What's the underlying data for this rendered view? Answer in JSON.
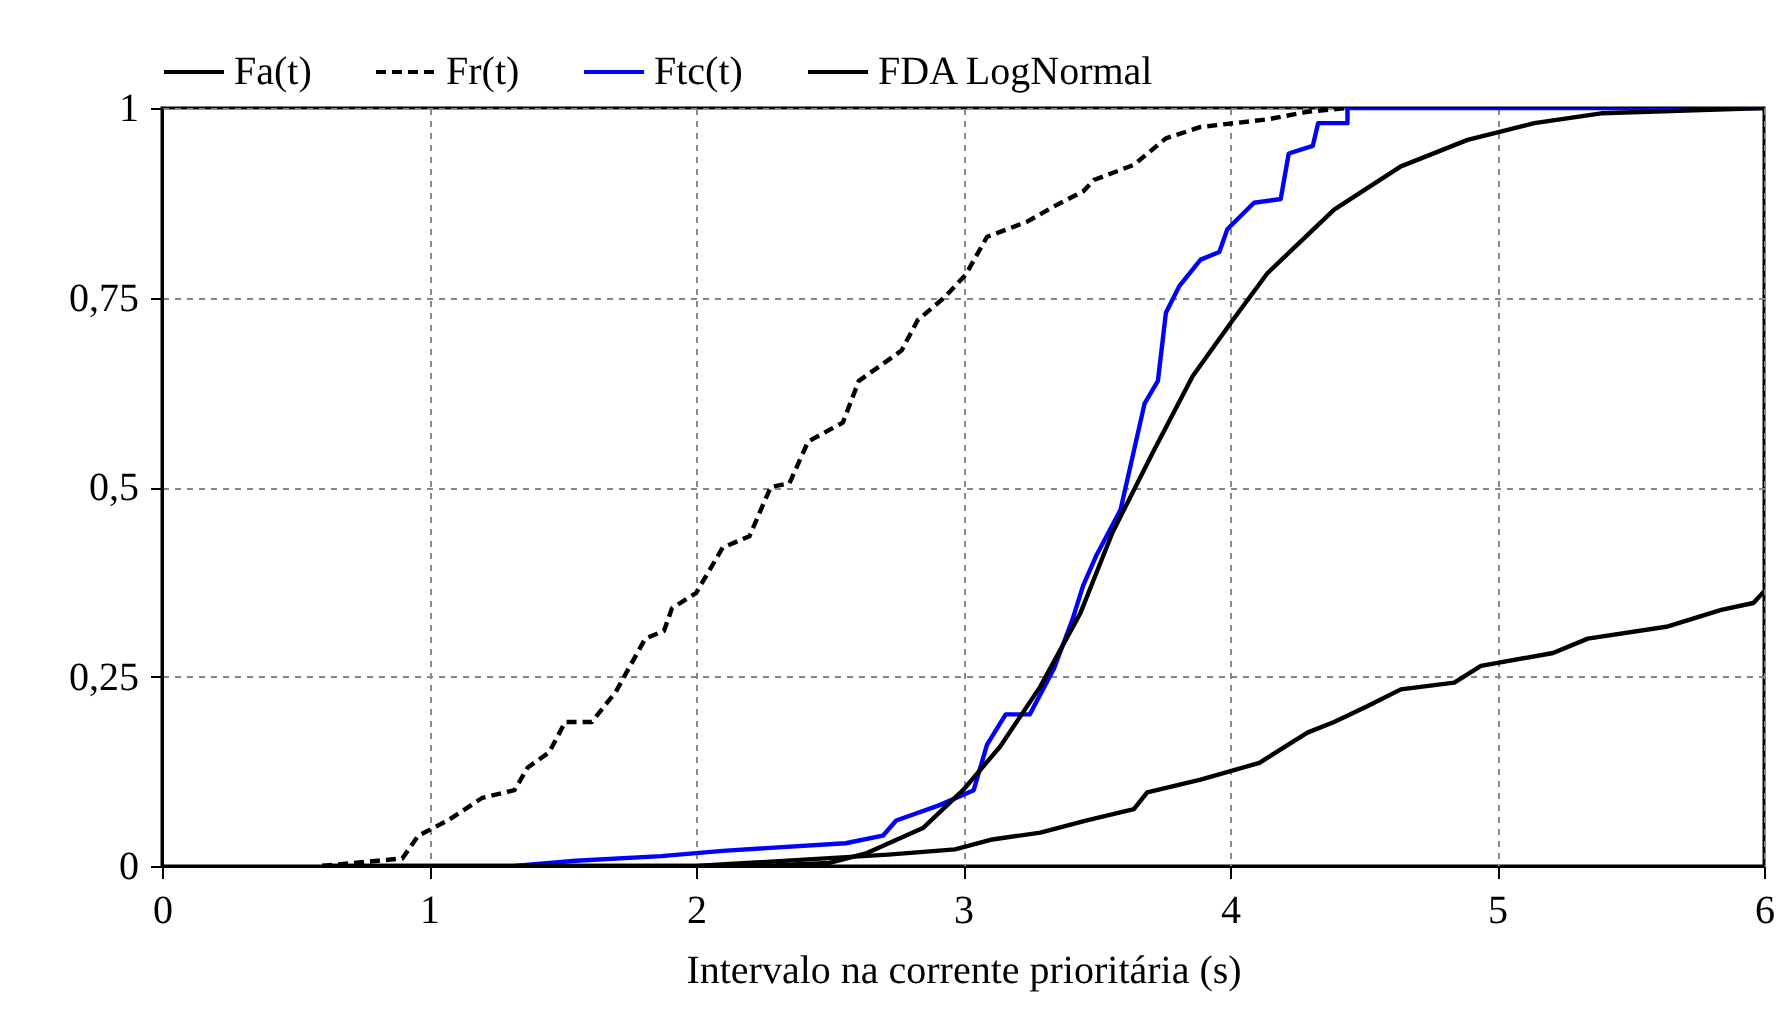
{
  "chart_data": {
    "type": "line",
    "xlabel": "Intervalo na corrente prioritária (s)",
    "xlim": [
      0,
      6
    ],
    "ylim": [
      0,
      1
    ],
    "xticks": [
      0,
      1,
      2,
      3,
      4,
      5,
      6
    ],
    "yticks": [
      0,
      {
        "value": 0.25,
        "label": "0,25"
      },
      {
        "value": 0.5,
        "label": "0,5"
      },
      {
        "value": 0.75,
        "label": "0,75"
      },
      1
    ],
    "grid": true,
    "legend": "top",
    "line_style": "solid",
    "series": [
      {
        "name": "Fa(t)",
        "color": "#000000",
        "x": [
          0.6,
          2.0,
          2.72,
          2.97,
          3.11,
          3.29,
          3.46,
          3.64,
          3.69,
          3.89,
          4.11,
          4.29,
          4.39,
          4.51,
          4.64,
          4.84,
          4.94,
          5.21,
          5.34,
          5.64,
          5.84,
          5.96,
          6.0
        ],
        "values": [
          0,
          0,
          0.015,
          0.022,
          0.035,
          0.044,
          0.06,
          0.075,
          0.097,
          0.114,
          0.136,
          0.176,
          0.19,
          0.21,
          0.233,
          0.242,
          0.264,
          0.281,
          0.3,
          0.316,
          0.338,
          0.347,
          0.362
        ]
      },
      {
        "name": "Fr(t)",
        "color": "#000000",
        "line_style": "dashed",
        "x": [
          0.6,
          0.9,
          0.96,
          1.07,
          1.2,
          1.32,
          1.37,
          1.45,
          1.51,
          1.61,
          1.7,
          1.81,
          1.88,
          1.91,
          2.0,
          2.1,
          2.2,
          2.28,
          2.35,
          2.42,
          2.55,
          2.61,
          2.77,
          2.83,
          2.93,
          3.01,
          3.09,
          3.24,
          3.34,
          3.45,
          3.49,
          3.64,
          3.76,
          3.89,
          4.14,
          4.29,
          4.44
        ],
        "values": [
          0,
          0.01,
          0.04,
          0.06,
          0.09,
          0.1,
          0.13,
          0.15,
          0.19,
          0.19,
          0.23,
          0.3,
          0.31,
          0.34,
          0.36,
          0.42,
          0.435,
          0.5,
          0.505,
          0.56,
          0.585,
          0.64,
          0.68,
          0.72,
          0.75,
          0.78,
          0.83,
          0.85,
          0.87,
          0.89,
          0.905,
          0.925,
          0.96,
          0.975,
          0.985,
          0.995,
          1
        ]
      },
      {
        "name": "Ftc(t)",
        "color": "#0000ff",
        "x": [
          1.32,
          1.55,
          1.87,
          2.1,
          2.56,
          2.7,
          2.75,
          2.91,
          3.04,
          3.09,
          3.16,
          3.25,
          3.34,
          3.41,
          3.45,
          3.5,
          3.59,
          3.68,
          3.73,
          3.76,
          3.81,
          3.89,
          3.96,
          3.99,
          4.09,
          4.19,
          4.22,
          4.31,
          4.33,
          4.44,
          4.44,
          6.0
        ],
        "values": [
          0,
          0.007,
          0.013,
          0.02,
          0.03,
          0.04,
          0.06,
          0.08,
          0.1,
          0.16,
          0.2,
          0.2,
          0.26,
          0.325,
          0.37,
          0.41,
          0.47,
          0.61,
          0.64,
          0.73,
          0.765,
          0.8,
          0.81,
          0.84,
          0.875,
          0.88,
          0.94,
          0.95,
          0.98,
          0.98,
          1,
          1
        ]
      },
      {
        "name": "FDA LogNormal",
        "color": "#000000",
        "x": [
          0.6,
          2.0,
          2.3,
          2.5,
          2.64,
          2.85,
          3.0,
          3.14,
          3.29,
          3.44,
          3.56,
          3.71,
          3.86,
          4.01,
          4.14,
          4.39,
          4.64,
          4.89,
          5.14,
          5.39,
          6.0
        ],
        "values": [
          0,
          0,
          0.001,
          0.004,
          0.017,
          0.05,
          0.1,
          0.158,
          0.237,
          0.334,
          0.44,
          0.545,
          0.646,
          0.72,
          0.782,
          0.866,
          0.923,
          0.958,
          0.98,
          0.993,
          1
        ]
      }
    ]
  }
}
